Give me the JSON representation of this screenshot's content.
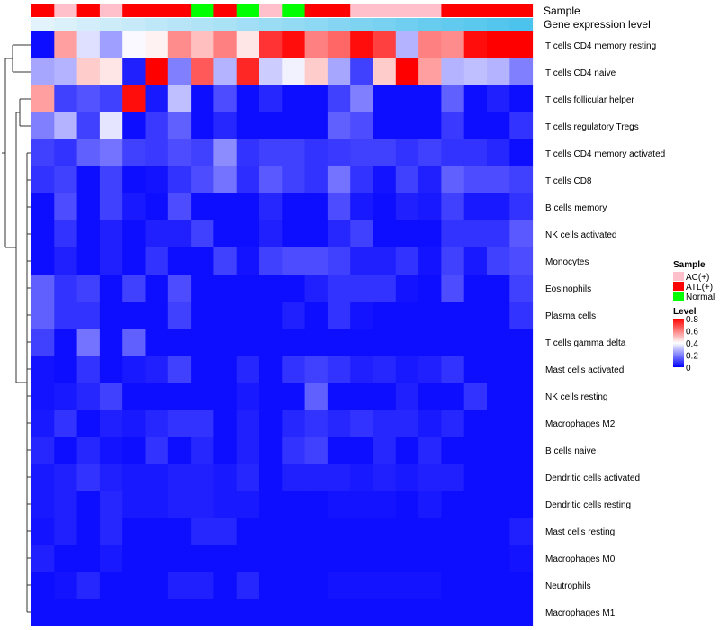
{
  "chart_data": {
    "type": "heatmap",
    "title": "",
    "annotation_labels": {
      "sample": "Sample",
      "expression": "Gene expression level"
    },
    "sample_row": [
      "ATL(+)",
      "AC(+)",
      "ATL(+)",
      "AC(+)",
      "ATL(+)",
      "ATL(+)",
      "ATL(+)",
      "Normal",
      "ATL(+)",
      "Normal",
      "AC(+)",
      "Normal",
      "ATL(+)",
      "ATL(+)",
      "AC(+)",
      "AC(+)",
      "AC(+)",
      "AC(+)",
      "ATL(+)",
      "ATL(+)",
      "ATL(+)",
      "ATL(+)"
    ],
    "expression_row": [
      0.0,
      0.05,
      0.1,
      0.14,
      0.19,
      0.24,
      0.29,
      0.33,
      0.38,
      0.43,
      0.48,
      0.52,
      0.57,
      0.62,
      0.67,
      0.71,
      0.76,
      0.81,
      0.86,
      0.9,
      0.95,
      1.0
    ],
    "rows": [
      "T cells CD4 memory resting",
      "T cells CD4 naive",
      "T cells follicular helper",
      "T cells regulatory  Tregs",
      "T cells CD4 memory activated",
      "T cells CD8",
      "B cells memory",
      "NK cells activated",
      "Monocytes",
      "Eosinophils",
      "Plasma cells",
      "T cells gamma delta",
      "Mast cells activated",
      "NK cells resting",
      "Macrophages M2",
      "B cells naive",
      "Dendritic cells activated",
      "Dendritic cells resting",
      "Mast cells resting",
      "Macrophages M0",
      "Neutrophils",
      "Macrophages M1"
    ],
    "values": [
      [
        0.02,
        0.55,
        0.35,
        0.25,
        0.39,
        0.42,
        0.58,
        0.5,
        0.6,
        0.44,
        0.72,
        0.78,
        0.6,
        0.64,
        0.78,
        0.7,
        0.28,
        0.6,
        0.58,
        0.78,
        0.8,
        0.8
      ],
      [
        0.26,
        0.28,
        0.48,
        0.44,
        0.05,
        0.8,
        0.2,
        0.66,
        0.28,
        0.74,
        0.32,
        0.38,
        0.48,
        0.26,
        0.1,
        0.48,
        0.8,
        0.55,
        0.28,
        0.3,
        0.28,
        0.2
      ],
      [
        0.55,
        0.1,
        0.13,
        0.1,
        0.78,
        0.04,
        0.3,
        0.02,
        0.12,
        0.02,
        0.06,
        0.02,
        0.02,
        0.1,
        0.2,
        0.02,
        0.02,
        0.02,
        0.15,
        0.02,
        0.05,
        0.02
      ],
      [
        0.2,
        0.28,
        0.1,
        0.36,
        0.02,
        0.09,
        0.15,
        0.02,
        0.06,
        0.02,
        0.02,
        0.02,
        0.02,
        0.15,
        0.12,
        0.02,
        0.02,
        0.02,
        0.09,
        0.02,
        0.02,
        0.08
      ],
      [
        0.1,
        0.08,
        0.15,
        0.18,
        0.1,
        0.09,
        0.12,
        0.1,
        0.22,
        0.08,
        0.1,
        0.1,
        0.08,
        0.09,
        0.1,
        0.1,
        0.08,
        0.1,
        0.08,
        0.08,
        0.06,
        0.02
      ],
      [
        0.08,
        0.1,
        0.02,
        0.1,
        0.02,
        0.03,
        0.08,
        0.12,
        0.18,
        0.07,
        0.14,
        0.1,
        0.08,
        0.18,
        0.08,
        0.03,
        0.1,
        0.05,
        0.15,
        0.12,
        0.12,
        0.1
      ],
      [
        0.02,
        0.12,
        0.02,
        0.1,
        0.04,
        0.02,
        0.12,
        0.02,
        0.02,
        0.02,
        0.06,
        0.02,
        0.02,
        0.12,
        0.04,
        0.02,
        0.05,
        0.04,
        0.1,
        0.04,
        0.04,
        0.08
      ],
      [
        0.02,
        0.08,
        0.02,
        0.05,
        0.02,
        0.05,
        0.05,
        0.1,
        0.02,
        0.02,
        0.05,
        0.02,
        0.02,
        0.06,
        0.1,
        0.02,
        0.02,
        0.02,
        0.08,
        0.08,
        0.08,
        0.14
      ],
      [
        0.02,
        0.05,
        0.02,
        0.05,
        0.02,
        0.08,
        0.02,
        0.02,
        0.1,
        0.03,
        0.1,
        0.12,
        0.12,
        0.1,
        0.05,
        0.05,
        0.08,
        0.03,
        0.1,
        0.04,
        0.1,
        0.12
      ],
      [
        0.15,
        0.08,
        0.1,
        0.02,
        0.1,
        0.02,
        0.12,
        0.02,
        0.02,
        0.02,
        0.02,
        0.02,
        0.05,
        0.08,
        0.08,
        0.08,
        0.03,
        0.02,
        0.12,
        0.02,
        0.02,
        0.1
      ],
      [
        0.15,
        0.08,
        0.08,
        0.02,
        0.02,
        0.02,
        0.1,
        0.02,
        0.02,
        0.02,
        0.02,
        0.05,
        0.02,
        0.08,
        0.03,
        0.02,
        0.02,
        0.02,
        0.02,
        0.02,
        0.02,
        0.08
      ],
      [
        0.1,
        0.02,
        0.18,
        0.02,
        0.15,
        0.02,
        0.02,
        0.02,
        0.02,
        0.02,
        0.02,
        0.02,
        0.02,
        0.02,
        0.02,
        0.02,
        0.02,
        0.02,
        0.02,
        0.02,
        0.02,
        0.02
      ],
      [
        0.03,
        0.02,
        0.08,
        0.02,
        0.04,
        0.05,
        0.1,
        0.02,
        0.02,
        0.06,
        0.02,
        0.08,
        0.1,
        0.08,
        0.05,
        0.06,
        0.04,
        0.05,
        0.08,
        0.02,
        0.02,
        0.02
      ],
      [
        0.03,
        0.04,
        0.06,
        0.1,
        0.02,
        0.02,
        0.02,
        0.02,
        0.02,
        0.04,
        0.02,
        0.02,
        0.15,
        0.02,
        0.02,
        0.02,
        0.05,
        0.02,
        0.02,
        0.08,
        0.02,
        0.02
      ],
      [
        0.04,
        0.08,
        0.02,
        0.05,
        0.04,
        0.06,
        0.08,
        0.08,
        0.02,
        0.05,
        0.02,
        0.06,
        0.08,
        0.06,
        0.08,
        0.06,
        0.06,
        0.04,
        0.06,
        0.02,
        0.02,
        0.02
      ],
      [
        0.06,
        0.02,
        0.06,
        0.03,
        0.02,
        0.08,
        0.02,
        0.06,
        0.02,
        0.05,
        0.02,
        0.08,
        0.1,
        0.02,
        0.02,
        0.06,
        0.02,
        0.06,
        0.02,
        0.02,
        0.02,
        0.02
      ],
      [
        0.04,
        0.05,
        0.08,
        0.05,
        0.04,
        0.04,
        0.05,
        0.05,
        0.04,
        0.06,
        0.02,
        0.05,
        0.05,
        0.05,
        0.04,
        0.05,
        0.04,
        0.05,
        0.05,
        0.02,
        0.02,
        0.02
      ],
      [
        0.04,
        0.05,
        0.02,
        0.06,
        0.04,
        0.04,
        0.05,
        0.05,
        0.04,
        0.04,
        0.02,
        0.02,
        0.02,
        0.03,
        0.03,
        0.03,
        0.02,
        0.04,
        0.02,
        0.02,
        0.02,
        0.02
      ],
      [
        0.03,
        0.05,
        0.02,
        0.06,
        0.02,
        0.02,
        0.02,
        0.06,
        0.06,
        0.02,
        0.02,
        0.02,
        0.02,
        0.02,
        0.02,
        0.02,
        0.02,
        0.02,
        0.02,
        0.02,
        0.02,
        0.05
      ],
      [
        0.05,
        0.02,
        0.02,
        0.04,
        0.02,
        0.02,
        0.02,
        0.02,
        0.02,
        0.02,
        0.02,
        0.02,
        0.02,
        0.02,
        0.02,
        0.02,
        0.02,
        0.02,
        0.02,
        0.02,
        0.02,
        0.03
      ],
      [
        0.02,
        0.03,
        0.06,
        0.02,
        0.02,
        0.02,
        0.05,
        0.05,
        0.02,
        0.06,
        0.02,
        0.02,
        0.02,
        0.03,
        0.03,
        0.03,
        0.03,
        0.03,
        0.02,
        0.02,
        0.02,
        0.02
      ],
      [
        0.02,
        0.02,
        0.02,
        0.02,
        0.02,
        0.02,
        0.02,
        0.02,
        0.02,
        0.02,
        0.02,
        0.02,
        0.02,
        0.02,
        0.02,
        0.02,
        0.02,
        0.02,
        0.02,
        0.02,
        0.02,
        0.02
      ]
    ],
    "color_scale": {
      "stops": [
        0,
        0.4,
        0.8
      ],
      "colors": [
        "#0000ff",
        "#ffffff",
        "#ff0000"
      ],
      "expression_colors": [
        "#e2f3fb",
        "#4cc3ec"
      ]
    },
    "legend": {
      "position": "right",
      "sample_title": "Sample",
      "sample_entries": [
        {
          "label": "AC(+)",
          "color": "#ffc0cb"
        },
        {
          "label": "ATL(+)",
          "color": "#ff0000"
        },
        {
          "label": "Normal",
          "color": "#00ff00"
        }
      ],
      "level_title": "Level",
      "level_ticks": [
        "0.8",
        "0.6",
        "0.4",
        "0.2",
        "0"
      ]
    }
  }
}
